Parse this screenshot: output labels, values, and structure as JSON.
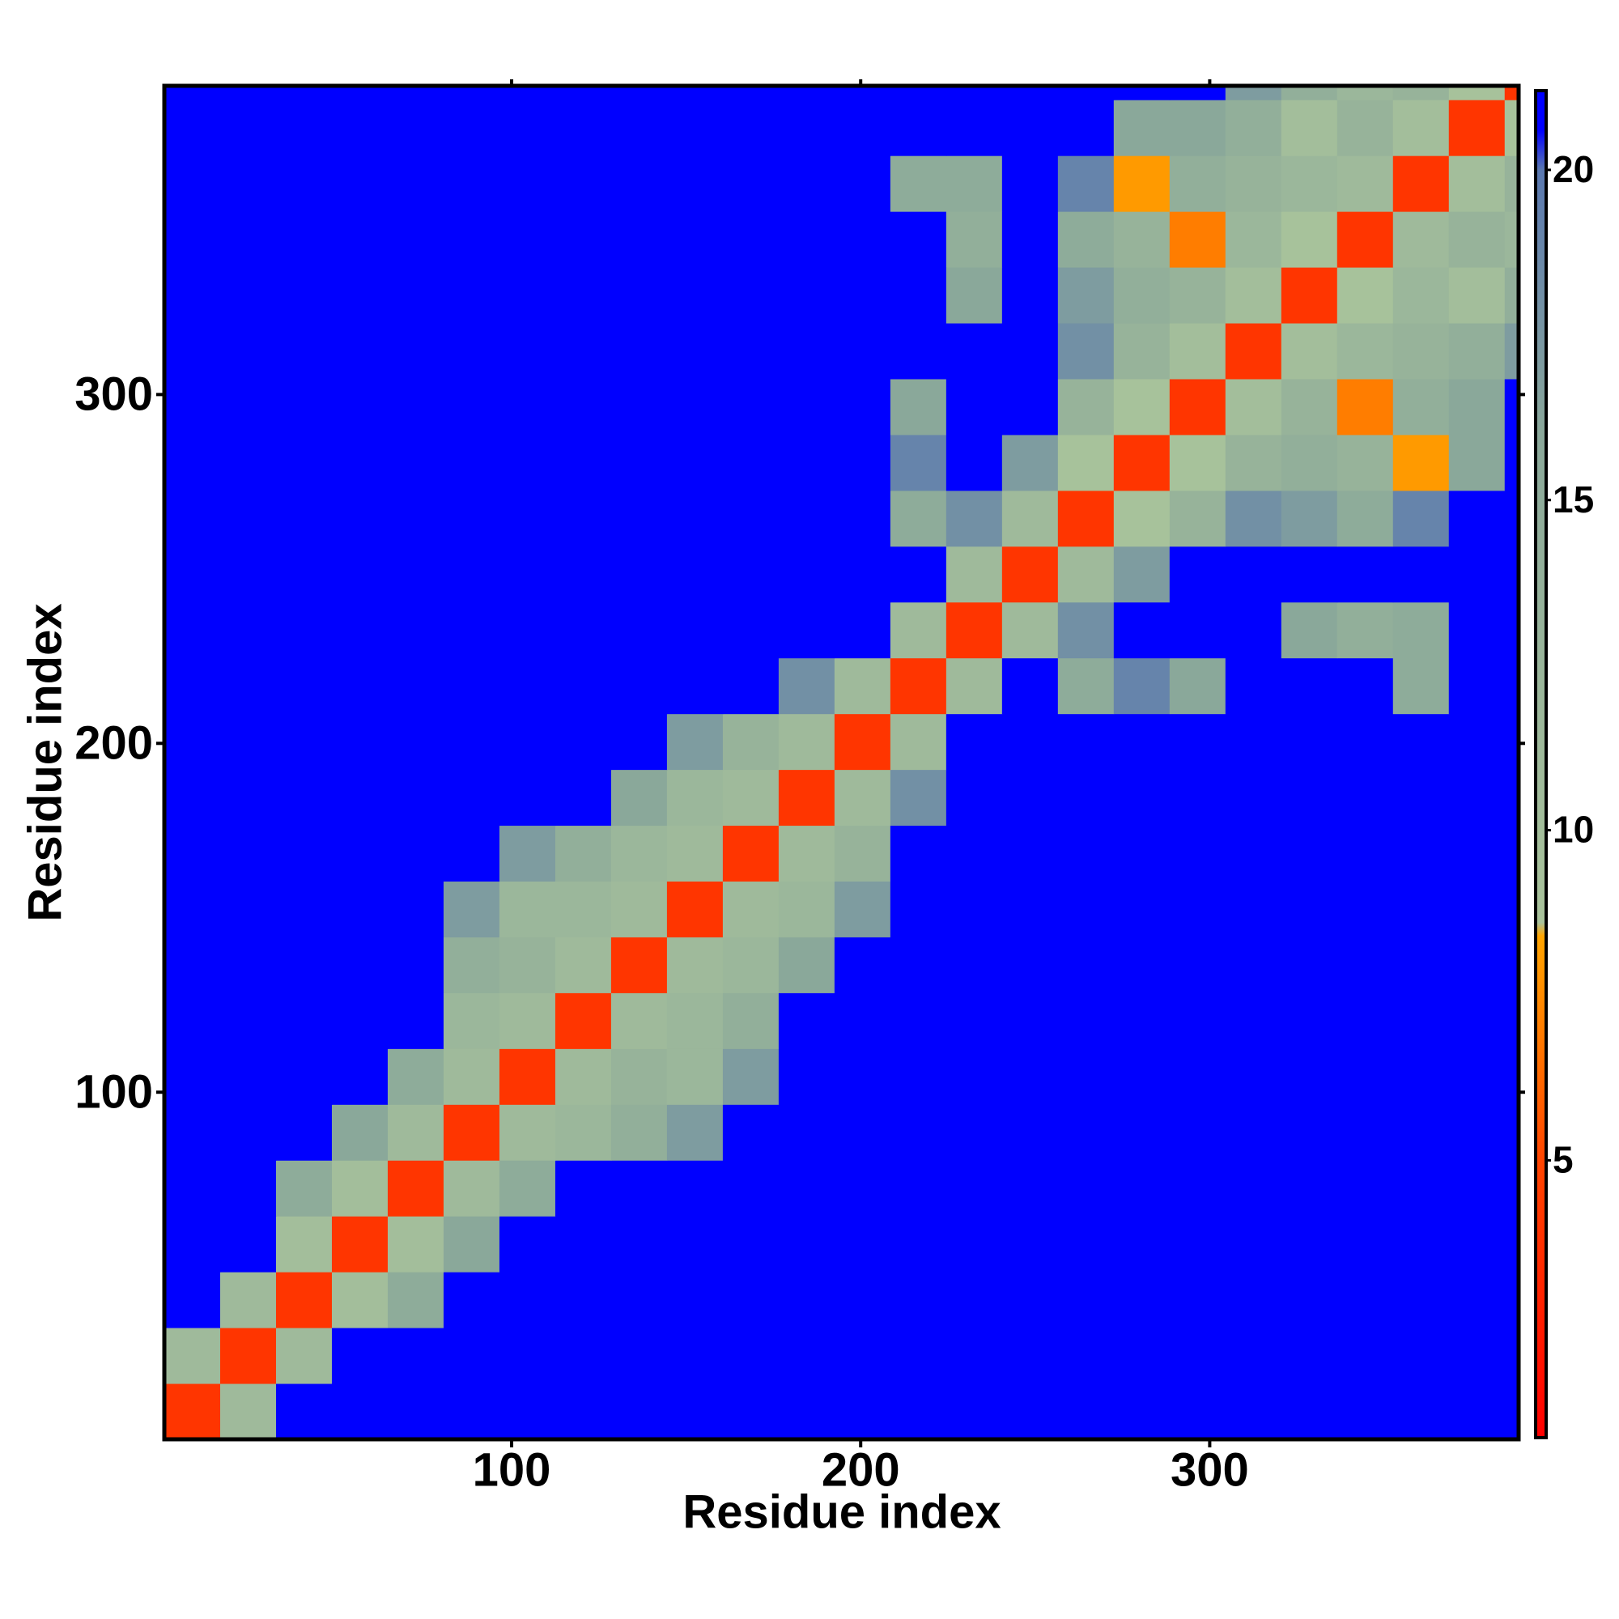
{
  "chart_data": {
    "type": "heatmap",
    "x_label": "Residue index",
    "y_label": "Residue index",
    "bins": [
      0.5,
      16.5,
      32.5,
      48.5,
      64.5,
      80.5,
      96.5,
      112.5,
      128.5,
      144.5,
      160.5,
      176.5,
      192.5,
      208.5,
      224.5,
      240.5,
      256.5,
      272.5,
      288.5,
      304.5,
      320.5,
      336.5,
      352.5,
      368.5,
      384.5,
      388.5
    ],
    "values": [
      [
        4,
        11,
        21,
        21,
        21,
        21,
        21,
        21,
        21,
        21,
        21,
        21,
        21,
        21,
        21,
        21,
        21,
        21,
        21,
        21,
        21,
        21,
        21,
        21,
        21
      ],
      [
        11,
        4,
        11,
        21,
        21,
        21,
        21,
        21,
        21,
        21,
        21,
        21,
        21,
        21,
        21,
        21,
        21,
        21,
        21,
        21,
        21,
        21,
        21,
        21,
        21
      ],
      [
        21,
        11,
        4,
        10,
        15,
        21,
        21,
        21,
        21,
        21,
        21,
        21,
        21,
        21,
        21,
        21,
        21,
        21,
        21,
        21,
        21,
        21,
        21,
        21,
        21
      ],
      [
        21,
        21,
        10,
        4,
        10,
        16,
        21,
        21,
        21,
        21,
        21,
        21,
        21,
        21,
        21,
        21,
        21,
        21,
        21,
        21,
        21,
        21,
        21,
        21,
        21
      ],
      [
        21,
        21,
        15,
        10,
        4,
        11,
        15,
        21,
        21,
        21,
        21,
        21,
        21,
        21,
        21,
        21,
        21,
        21,
        21,
        21,
        21,
        21,
        21,
        21,
        21
      ],
      [
        21,
        21,
        21,
        16,
        11,
        4,
        11,
        12,
        14,
        17,
        21,
        21,
        21,
        21,
        21,
        21,
        21,
        21,
        21,
        21,
        21,
        21,
        21,
        21,
        21
      ],
      [
        21,
        21,
        21,
        21,
        15,
        11,
        4,
        11,
        13,
        12,
        17,
        21,
        21,
        21,
        21,
        21,
        21,
        21,
        21,
        21,
        21,
        21,
        21,
        21,
        21
      ],
      [
        21,
        21,
        21,
        21,
        21,
        12,
        11,
        4,
        11,
        12,
        14,
        21,
        21,
        21,
        21,
        21,
        21,
        21,
        21,
        21,
        21,
        21,
        21,
        21,
        21
      ],
      [
        21,
        21,
        21,
        21,
        21,
        14,
        13,
        11,
        4,
        11,
        12,
        16,
        21,
        21,
        21,
        21,
        21,
        21,
        21,
        21,
        21,
        21,
        21,
        21,
        21
      ],
      [
        21,
        21,
        21,
        21,
        21,
        17,
        12,
        12,
        11,
        4,
        11,
        12,
        17,
        21,
        21,
        21,
        21,
        21,
        21,
        21,
        21,
        21,
        21,
        21,
        21
      ],
      [
        21,
        21,
        21,
        21,
        21,
        21,
        17,
        14,
        12,
        11,
        4,
        11,
        13,
        21,
        21,
        21,
        21,
        21,
        21,
        21,
        21,
        21,
        21,
        21,
        21
      ],
      [
        21,
        21,
        21,
        21,
        21,
        21,
        21,
        21,
        16,
        12,
        11,
        4,
        11,
        18,
        21,
        21,
        21,
        21,
        21,
        21,
        21,
        21,
        21,
        21,
        21
      ],
      [
        21,
        21,
        21,
        21,
        21,
        21,
        21,
        21,
        21,
        17,
        13,
        11,
        4,
        11,
        21,
        21,
        21,
        21,
        21,
        21,
        21,
        21,
        21,
        21,
        21
      ],
      [
        21,
        21,
        21,
        21,
        21,
        21,
        21,
        21,
        21,
        21,
        21,
        18,
        11,
        4,
        11,
        21,
        15,
        19,
        16,
        21,
        21,
        21,
        15,
        21,
        21
      ],
      [
        21,
        21,
        21,
        21,
        21,
        21,
        21,
        21,
        21,
        21,
        21,
        21,
        21,
        11,
        4,
        11,
        18,
        21,
        21,
        21,
        16,
        14,
        15,
        21,
        21
      ],
      [
        21,
        21,
        21,
        21,
        21,
        21,
        21,
        21,
        21,
        21,
        21,
        21,
        21,
        21,
        11,
        4,
        11,
        17,
        21,
        21,
        21,
        21,
        21,
        21,
        21
      ],
      [
        21,
        21,
        21,
        21,
        21,
        21,
        21,
        21,
        21,
        21,
        21,
        21,
        21,
        15,
        18,
        11,
        4,
        9,
        13,
        18,
        17,
        15,
        19,
        21,
        21
      ],
      [
        21,
        21,
        21,
        21,
        21,
        21,
        21,
        21,
        21,
        21,
        21,
        21,
        21,
        19,
        21,
        17,
        9,
        4,
        9,
        13,
        14,
        13,
        8,
        16,
        21
      ],
      [
        21,
        21,
        21,
        21,
        21,
        21,
        21,
        21,
        21,
        21,
        21,
        21,
        21,
        16,
        21,
        21,
        13,
        9,
        4,
        10,
        13,
        7,
        14,
        16,
        21
      ],
      [
        21,
        21,
        21,
        21,
        21,
        21,
        21,
        21,
        21,
        21,
        21,
        21,
        21,
        21,
        21,
        21,
        18,
        13,
        10,
        4,
        10,
        12,
        13,
        14,
        17
      ],
      [
        21,
        21,
        21,
        21,
        21,
        21,
        21,
        21,
        21,
        21,
        21,
        21,
        21,
        21,
        16,
        21,
        17,
        14,
        13,
        10,
        4,
        9,
        12,
        10,
        14
      ],
      [
        21,
        21,
        21,
        21,
        21,
        21,
        21,
        21,
        21,
        21,
        21,
        21,
        21,
        21,
        14,
        21,
        15,
        13,
        7,
        12,
        9,
        4,
        11,
        13,
        12
      ],
      [
        21,
        21,
        21,
        21,
        21,
        21,
        21,
        21,
        21,
        21,
        21,
        21,
        21,
        15,
        15,
        21,
        19,
        8,
        14,
        13,
        12,
        11,
        4,
        10,
        13
      ],
      [
        21,
        21,
        21,
        21,
        21,
        21,
        21,
        21,
        21,
        21,
        21,
        21,
        21,
        21,
        21,
        21,
        21,
        16,
        16,
        14,
        10,
        13,
        10,
        4,
        9
      ],
      [
        21,
        21,
        21,
        21,
        21,
        21,
        21,
        21,
        21,
        21,
        21,
        21,
        21,
        21,
        21,
        21,
        21,
        21,
        21,
        17,
        14,
        12,
        13,
        9,
        4
      ]
    ],
    "xlim": [
      0.5,
      388.5
    ],
    "xticks": [
      100,
      200,
      300
    ],
    "ylim": [
      0.5,
      388.5
    ],
    "yticks": [
      100,
      200,
      300
    ],
    "clim": [
      0.8,
      21.2
    ],
    "cticks": [
      5,
      10,
      15,
      20
    ],
    "colorscale": [
      {
        "value": 0.8,
        "color": "#ff0000"
      },
      {
        "value": 5,
        "color": "#ff4500"
      },
      {
        "value": 8.4,
        "color": "#ffa500"
      },
      {
        "value": 8.6,
        "color": "#a9c39b"
      },
      {
        "value": 16,
        "color": "#8aa89a"
      },
      {
        "value": 20,
        "color": "#5a78b0"
      },
      {
        "value": 20.6,
        "color": "#0000ff"
      },
      {
        "value": 21.2,
        "color": "#0000ff"
      }
    ]
  }
}
